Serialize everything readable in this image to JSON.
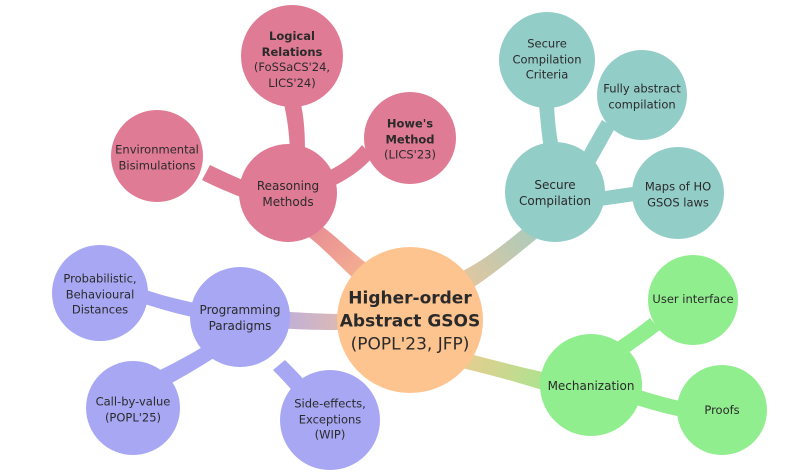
{
  "colors": {
    "reasoning": "#e07b95",
    "secure": "#93cdc8",
    "programming": "#a7a7f4",
    "mechanization": "#90ee8e",
    "root": "#fdc490"
  },
  "root": {
    "line1": "Higher-order",
    "line2": "Abstract GSOS",
    "line3": "(POPL'23, JFP)"
  },
  "reasoning": {
    "label_l1": "Reasoning",
    "label_l2": "Methods",
    "logical": {
      "l1": "Logical",
      "l2": "Relations",
      "l3": "(FoSSaCS'24,",
      "l4": "LICS'24)"
    },
    "howe": {
      "l1": "Howe's",
      "l2": "Method",
      "l3": "(LICS'23)"
    },
    "env": {
      "l1": "Environmental",
      "l2": "Bisimulations"
    }
  },
  "secure": {
    "label_l1": "Secure",
    "label_l2": "Compilation",
    "criteria": {
      "l1": "Secure",
      "l2": "Compilation",
      "l3": "Criteria"
    },
    "fully": {
      "l1": "Fully abstract",
      "l2": "compilation"
    },
    "maps": {
      "l1": "Maps of HO",
      "l2": "GSOS laws"
    }
  },
  "programming": {
    "label_l1": "Programming",
    "label_l2": "Paradigms",
    "prob": {
      "l1": "Probabilistic,",
      "l2": "Behavioural",
      "l3": "Distances"
    },
    "cbv": {
      "l1": "Call-by-value",
      "l2": "(POPL'25)"
    },
    "side": {
      "l1": "Side-effects,",
      "l2": "Exceptions",
      "l3": "(WIP)"
    }
  },
  "mechanization": {
    "label": "Mechanization",
    "ui": "User interface",
    "proofs": "Proofs"
  }
}
